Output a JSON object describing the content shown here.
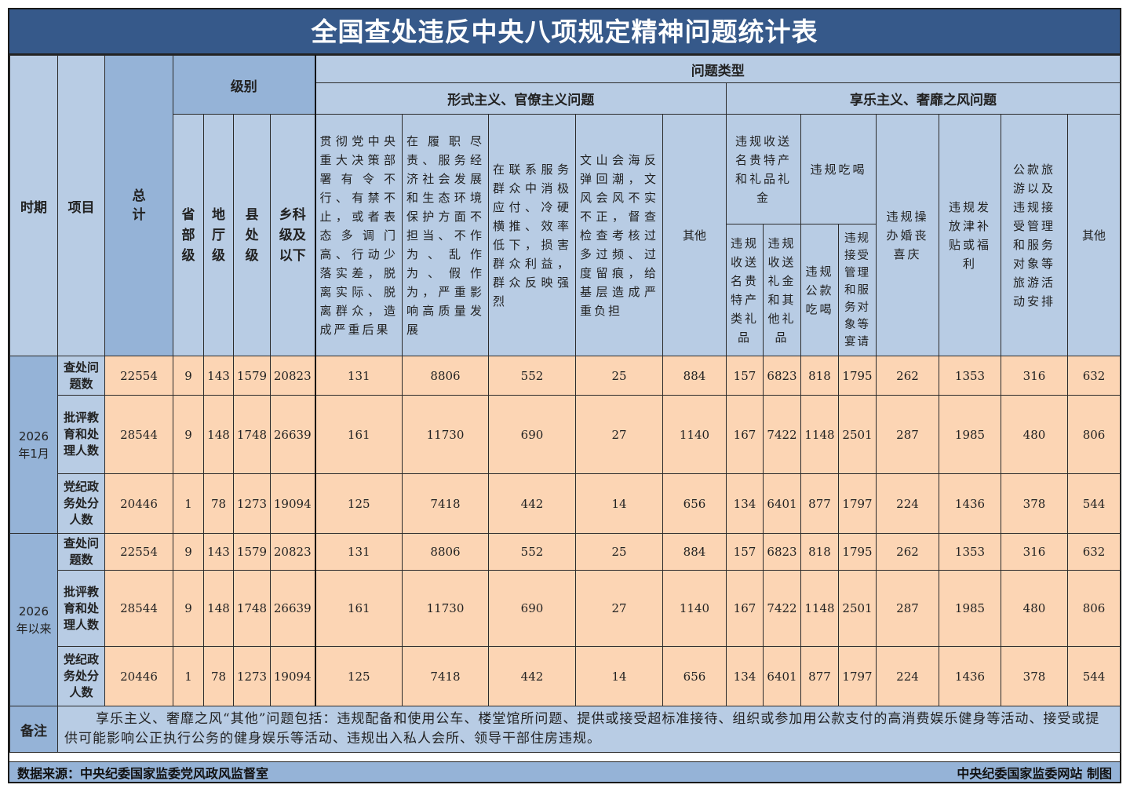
{
  "title": "全国查处违反中央八项规定精神问题统计表",
  "header": {
    "period": "时期",
    "item": "项目",
    "total": "总计",
    "level_group": "级别",
    "levels": [
      "省部级",
      "地厅级",
      "县处级",
      "乡科级及以下"
    ],
    "problem_type": "问题类型",
    "formalism_group": "形式主义、官僚主义问题",
    "formalism_cols": [
      "贯彻党中央重大决策部署有令不行、有禁不止，或者表态多调门高、行动少落实差，脱离实际、脱离群众，造成严重后果",
      "在履职尽责、服务经济社会发展和生态环境保护方面不担当、不作为、乱作为、假作为，严重影响高质量发展",
      "在联系服务群众中消极应付、冷硬横推、效率低下，损害群众利益，群众反映强烈",
      "文山会海反弹回潮，文风会风不实不正，督查检查考核过多过频、过度留痕，给基层造成严重负担",
      "其他"
    ],
    "hedonism_group": "享乐主义、奢靡之风问题",
    "gifts_group": "违规收送名贵特产和礼品礼金",
    "gifts_cols": [
      "违规收送名贵特产类礼品",
      "违规收送礼金和其他礼品"
    ],
    "dining_group": "违规吃喝",
    "dining_cols": [
      "违规公款吃喝",
      "违规接受管理和服务对象等宴请"
    ],
    "hedonism_cols": [
      "违规操办婚丧喜庆",
      "违规发放津补贴或福利",
      "公款旅游以及违规接受管理和服务对象等旅游活动安排",
      "其他"
    ]
  },
  "periods": [
    {
      "label": "2026年1月",
      "rows": [
        {
          "item": "查处问题数",
          "values": [
            "22554",
            "9",
            "143",
            "1579",
            "20823",
            "131",
            "8806",
            "552",
            "25",
            "884",
            "157",
            "6823",
            "818",
            "1795",
            "262",
            "1353",
            "316",
            "632"
          ]
        },
        {
          "item": "批评教育和处理人数",
          "values": [
            "28544",
            "9",
            "148",
            "1748",
            "26639",
            "161",
            "11730",
            "690",
            "27",
            "1140",
            "167",
            "7422",
            "1148",
            "2501",
            "287",
            "1985",
            "480",
            "806"
          ]
        },
        {
          "item": "党纪政务处分人数",
          "values": [
            "20446",
            "1",
            "78",
            "1273",
            "19094",
            "125",
            "7418",
            "442",
            "14",
            "656",
            "134",
            "6401",
            "877",
            "1797",
            "224",
            "1436",
            "378",
            "544"
          ]
        }
      ]
    },
    {
      "label": "2026年以来",
      "rows": [
        {
          "item": "查处问题数",
          "values": [
            "22554",
            "9",
            "143",
            "1579",
            "20823",
            "131",
            "8806",
            "552",
            "25",
            "884",
            "157",
            "6823",
            "818",
            "1795",
            "262",
            "1353",
            "316",
            "632"
          ]
        },
        {
          "item": "批评教育和处理人数",
          "values": [
            "28544",
            "9",
            "148",
            "1748",
            "26639",
            "161",
            "11730",
            "690",
            "27",
            "1140",
            "167",
            "7422",
            "1148",
            "2501",
            "287",
            "1985",
            "480",
            "806"
          ]
        },
        {
          "item": "党纪政务处分人数",
          "values": [
            "20446",
            "1",
            "78",
            "1273",
            "19094",
            "125",
            "7418",
            "442",
            "14",
            "656",
            "134",
            "6401",
            "877",
            "1797",
            "224",
            "1436",
            "378",
            "544"
          ]
        }
      ]
    }
  ],
  "note": {
    "label": "备注",
    "text": "享乐主义、奢靡之风“其他”问题包括：违规配备和使用公车、楼堂馆所问题、提供或接受超标准接待、组织或参加用公款支付的高消费娱乐健身等活动、接受或提供可能影响公正执行公务的健身娱乐等活动、违规出入私人会所、领导干部住房违规。"
  },
  "footer": {
    "source": "数据来源：中央纪委国家监委党风政风监督室",
    "credit": "中央纪委国家监委网站 制图"
  },
  "colors": {
    "title_bg": "#36598a",
    "header_bg": "#b8cce4",
    "header_dark": "#95b3d7",
    "data_bg": "#fcd5b4"
  }
}
